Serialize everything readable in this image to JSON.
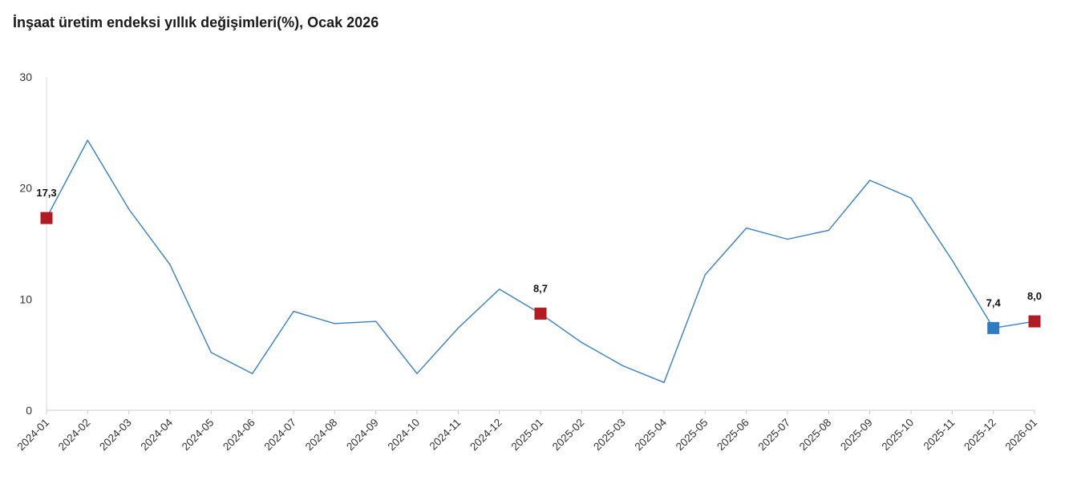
{
  "chart_data": {
    "type": "line",
    "title": "İnşaat üretim endeksi yıllık değişimleri(%), Ocak 2026",
    "xlabel": "",
    "ylabel": "",
    "ylim": [
      0,
      30
    ],
    "yticks": [
      "0",
      "10",
      "20",
      "30"
    ],
    "categories": [
      "2024-01",
      "2024-02",
      "2024-03",
      "2024-04",
      "2024-05",
      "2024-06",
      "2024-07",
      "2024-08",
      "2024-09",
      "2024-10",
      "2024-11",
      "2024-12",
      "2025-01",
      "2025-02",
      "2025-03",
      "2025-04",
      "2025-05",
      "2025-06",
      "2025-07",
      "2025-08",
      "2025-09",
      "2025-10",
      "2025-11",
      "2025-12",
      "2026-01"
    ],
    "series": [
      {
        "values": [
          17.3,
          24.3,
          18.1,
          13.1,
          5.2,
          3.3,
          8.9,
          7.8,
          8.0,
          3.3,
          7.4,
          10.9,
          8.7,
          6.1,
          4.0,
          2.5,
          12.2,
          16.4,
          15.4,
          16.2,
          20.7,
          19.1,
          13.5,
          7.4,
          8.0
        ],
        "color": "#3a7fbf"
      }
    ],
    "markers": [
      {
        "index": 0,
        "label": "17,3",
        "color": "#b01c22"
      },
      {
        "index": 12,
        "label": "8,7",
        "color": "#b01c22"
      },
      {
        "index": 23,
        "label": "7,4",
        "color": "#2e7bc4"
      },
      {
        "index": 24,
        "label": "8,0",
        "color": "#b01c22"
      }
    ],
    "grid": false,
    "legend": "none"
  }
}
